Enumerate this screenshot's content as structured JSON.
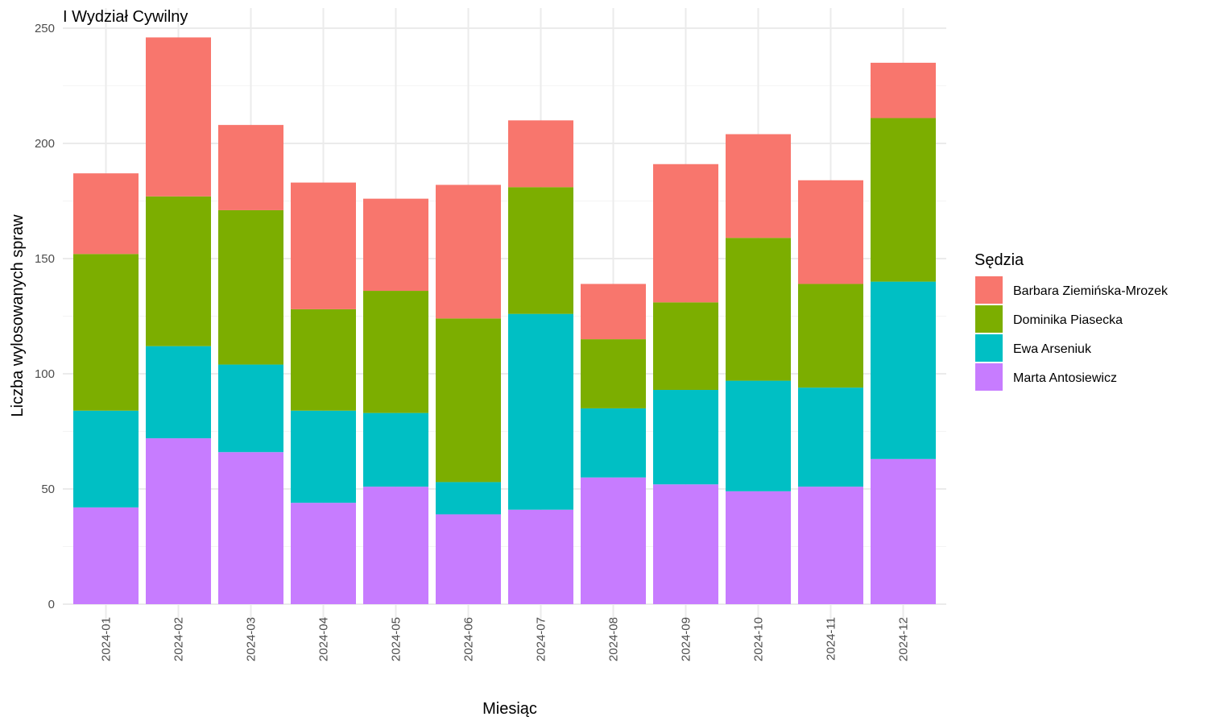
{
  "chart_data": {
    "type": "bar",
    "stacked": true,
    "title": "I Wydział Cywilny",
    "xlabel": "Miesiąc",
    "ylabel": "Liczba wylosowanych spraw",
    "ylim": [
      0,
      250
    ],
    "yticks": [
      0,
      50,
      100,
      150,
      200,
      250
    ],
    "grid": true,
    "legend": {
      "title": "Sędzia",
      "position": "right"
    },
    "categories": [
      "2024-01",
      "2024-02",
      "2024-03",
      "2024-04",
      "2024-05",
      "2024-06",
      "2024-07",
      "2024-08",
      "2024-09",
      "2024-10",
      "2024-11",
      "2024-12"
    ],
    "series": [
      {
        "name": "Marta Antosiewicz",
        "color": "#C77CFF",
        "values": [
          42,
          72,
          66,
          44,
          51,
          39,
          41,
          55,
          52,
          49,
          51,
          63
        ]
      },
      {
        "name": "Ewa Arseniuk",
        "color": "#00BFC4",
        "values": [
          42,
          40,
          38,
          40,
          32,
          14,
          85,
          30,
          41,
          48,
          43,
          77
        ]
      },
      {
        "name": "Dominika Piasecka",
        "color": "#7CAE00",
        "values": [
          68,
          65,
          67,
          44,
          53,
          71,
          55,
          30,
          38,
          62,
          45,
          71
        ]
      },
      {
        "name": "Barbara Ziemińska-Mrozek",
        "color": "#F8766D",
        "values": [
          35,
          69,
          37,
          55,
          40,
          58,
          29,
          24,
          60,
          45,
          45,
          24
        ]
      }
    ],
    "legend_order": [
      "Barbara Ziemińska-Mrozek",
      "Dominika Piasecka",
      "Ewa Arseniuk",
      "Marta Antosiewicz"
    ]
  }
}
